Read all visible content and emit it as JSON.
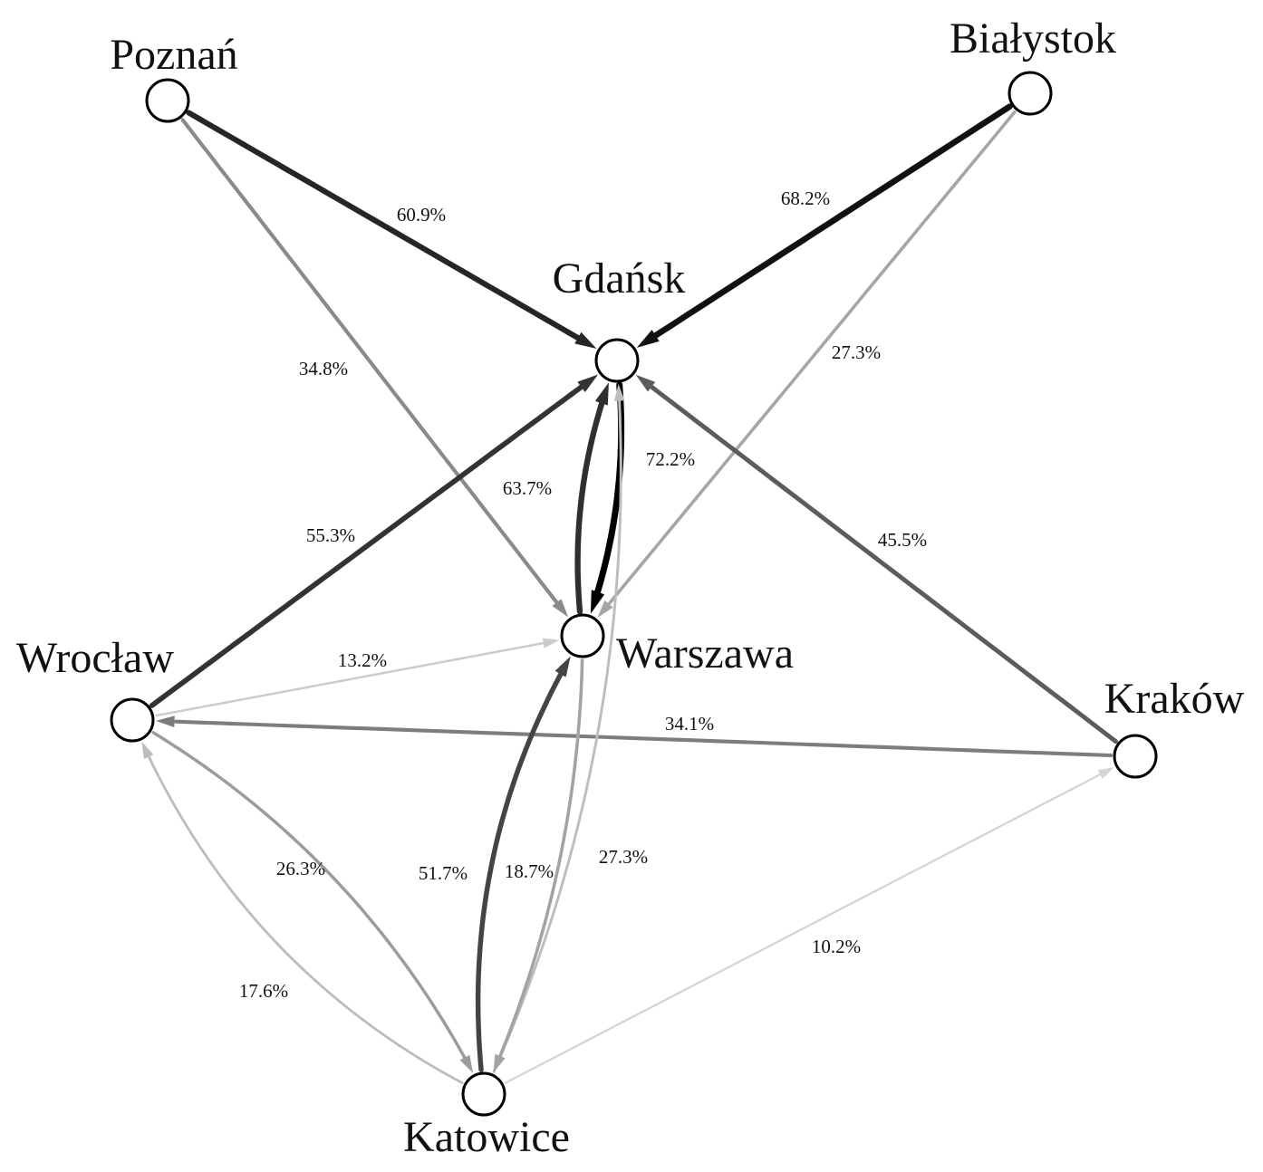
{
  "nodes": [
    {
      "id": "poznan",
      "name": "Poznań"
    },
    {
      "id": "bialystok",
      "name": "Białystok"
    },
    {
      "id": "gdansk",
      "name": "Gdańsk"
    },
    {
      "id": "warszawa",
      "name": "Warszawa"
    },
    {
      "id": "wroclaw",
      "name": "Wrocław"
    },
    {
      "id": "krakow",
      "name": "Kraków"
    },
    {
      "id": "katowice",
      "name": "Katowice"
    }
  ],
  "edges": [
    {
      "id": "poznan-gdansk",
      "from": "poznan",
      "to": "gdansk",
      "label": "60.9%",
      "value": 60.9,
      "color": "#262626"
    },
    {
      "id": "poznan-warszawa",
      "from": "poznan",
      "to": "warszawa",
      "label": "34.8%",
      "value": 34.8,
      "color": "#8a8a8a"
    },
    {
      "id": "bialystok-gdansk",
      "from": "bialystok",
      "to": "gdansk",
      "label": "68.2%",
      "value": 68.2,
      "color": "#111111"
    },
    {
      "id": "bialystok-warszawa",
      "from": "bialystok",
      "to": "warszawa",
      "label": "27.3%",
      "value": 27.3,
      "color": "#a6a6a6"
    },
    {
      "id": "warszawa-gdansk",
      "from": "warszawa",
      "to": "gdansk",
      "label": "63.7%",
      "value": 63.7,
      "color": "#2f2f2f"
    },
    {
      "id": "gdansk-warszawa",
      "from": "gdansk",
      "to": "warszawa",
      "label": "72.2%",
      "value": 72.2,
      "color": "#000000"
    },
    {
      "id": "wroclaw-gdansk",
      "from": "wroclaw",
      "to": "gdansk",
      "label": "55.3%",
      "value": 55.3,
      "color": "#333333"
    },
    {
      "id": "krakow-gdansk",
      "from": "krakow",
      "to": "gdansk",
      "label": "45.5%",
      "value": 45.5,
      "color": "#5c5c5c"
    },
    {
      "id": "wroclaw-warszawa",
      "from": "wroclaw",
      "to": "warszawa",
      "label": "13.2%",
      "value": 13.2,
      "color": "#cccccc"
    },
    {
      "id": "krakow-wroclaw",
      "from": "krakow",
      "to": "wroclaw",
      "label": "34.1%",
      "value": 34.1,
      "color": "#7d7d7d"
    },
    {
      "id": "wroclaw-katowice",
      "from": "wroclaw",
      "to": "katowice",
      "label": "26.3%",
      "value": 26.3,
      "color": "#9c9c9c"
    },
    {
      "id": "katowice-wroclaw",
      "from": "katowice",
      "to": "wroclaw",
      "label": "17.6%",
      "value": 17.6,
      "color": "#bdbdbd"
    },
    {
      "id": "katowice-warszawa",
      "from": "katowice",
      "to": "warszawa",
      "label": "51.7%",
      "value": 51.7,
      "color": "#444444"
    },
    {
      "id": "katowice-gdansk",
      "from": "katowice",
      "to": "gdansk",
      "label": "18.7%",
      "value": 18.7,
      "color": "#bdbdbd"
    },
    {
      "id": "warszawa-katowice",
      "from": "warszawa",
      "to": "katowice",
      "label": "27.3%",
      "value": 27.3,
      "color": "#a3a3a3"
    },
    {
      "id": "katowice-krakow",
      "from": "katowice",
      "to": "krakow",
      "label": "10.2%",
      "value": 10.2,
      "color": "#d4d4d4"
    }
  ]
}
